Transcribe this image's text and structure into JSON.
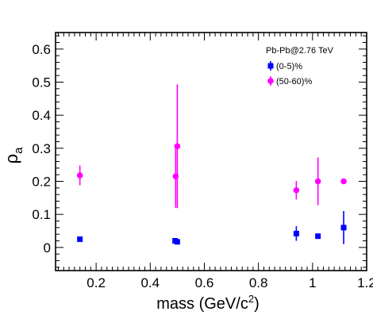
{
  "chart_data": {
    "type": "scatter",
    "title": "",
    "xlabel": "mass (GeV/c²)",
    "ylabel": "ρa",
    "xlabel_parts": {
      "main": "mass (GeV/c",
      "sup": "2",
      "tail": ")"
    },
    "ylabel_parts": {
      "main": "ρ",
      "sub": "a"
    },
    "xlim": [
      0.05,
      1.2
    ],
    "ylim": [
      -0.07,
      0.65
    ],
    "xticks": [
      "0.2",
      "0.4",
      "0.6",
      "0.8",
      "1",
      "1.2"
    ],
    "xtick_values": [
      0.2,
      0.4,
      0.6,
      0.8,
      1.0,
      1.2
    ],
    "yticks": [
      "0",
      "0.1",
      "0.2",
      "0.3",
      "0.4",
      "0.5",
      "0.6"
    ],
    "ytick_values": [
      0,
      0.1,
      0.2,
      0.3,
      0.4,
      0.5,
      0.6
    ],
    "grid": false,
    "legend_position": "top-right",
    "annotation": "Pb-Pb@2.76 TeV",
    "series": [
      {
        "name": "(0-5)%",
        "marker": "square",
        "color": "#0000ff",
        "points": [
          {
            "x": 0.14,
            "y": 0.025,
            "err": 0.0
          },
          {
            "x": 0.492,
            "y": 0.02,
            "err": 0.0
          },
          {
            "x": 0.5,
            "y": 0.017,
            "err": 0.0
          },
          {
            "x": 0.94,
            "y": 0.042,
            "err": 0.022
          },
          {
            "x": 1.02,
            "y": 0.034,
            "err": 0.0
          },
          {
            "x": 1.115,
            "y": 0.06,
            "err": 0.05
          }
        ]
      },
      {
        "name": "(50-60)%",
        "marker": "circle",
        "color": "#ff00ff",
        "points": [
          {
            "x": 0.14,
            "y": 0.218,
            "err": 0.03
          },
          {
            "x": 0.494,
            "y": 0.215,
            "err": 0.095
          },
          {
            "x": 0.5,
            "y": 0.306,
            "err": 0.187
          },
          {
            "x": 0.94,
            "y": 0.173,
            "err": 0.028
          },
          {
            "x": 1.02,
            "y": 0.2,
            "err": 0.072
          },
          {
            "x": 1.115,
            "y": 0.2,
            "err": 0.0
          }
        ]
      }
    ]
  }
}
